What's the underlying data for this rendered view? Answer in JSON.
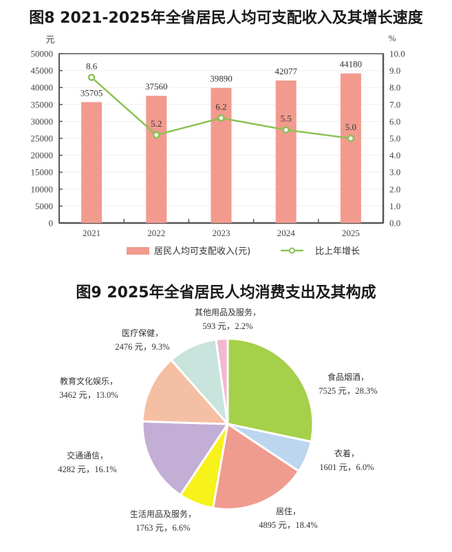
{
  "figure8": {
    "title": "图8 2021-2025年全省居民人均可支配收入及其增长速度",
    "left_unit": "元",
    "right_unit": "%",
    "legend_bar": "居民人均可支配收入(元)",
    "legend_line": "比上年增长"
  },
  "figure9": {
    "title": "图9 2025年全省居民人均消费支出及其构成"
  },
  "colors": {
    "bar": "#f29a8e",
    "line": "#8cc152",
    "axis": "#555555"
  },
  "chart_data": [
    {
      "type": "bar",
      "title": "图8 2021-2025年全省居民人均可支配收入及其增长速度",
      "categories": [
        "2021",
        "2022",
        "2023",
        "2024",
        "2025"
      ],
      "series": [
        {
          "name": "居民人均可支配收入(元)",
          "type": "bar",
          "axis": "left",
          "values": [
            35705,
            37560,
            39890,
            42077,
            44180
          ]
        },
        {
          "name": "比上年增长",
          "type": "line",
          "axis": "right",
          "values": [
            8.6,
            5.2,
            6.2,
            5.5,
            5.0
          ]
        }
      ],
      "xlabel": "",
      "ylabel": "元",
      "y2label": "%",
      "ylim": [
        0,
        50000
      ],
      "y2lim": [
        0,
        10.0
      ],
      "yticks": [
        0,
        5000,
        10000,
        15000,
        20000,
        25000,
        30000,
        35000,
        40000,
        45000,
        50000
      ],
      "y2ticks": [
        "0.0",
        "1.0",
        "2.0",
        "3.0",
        "4.0",
        "5.0",
        "6.0",
        "7.0",
        "8.0",
        "9.0",
        "10.0"
      ],
      "legend": [
        "居民人均可支配收入(元)",
        "比上年增长"
      ],
      "legend_position": "bottom",
      "grid": true
    },
    {
      "type": "pie",
      "title": "图9 2025年全省居民人均消费支出及其构成",
      "slices": [
        {
          "label": "食品烟酒",
          "value": 7525,
          "unit": "元",
          "percent": 28.3,
          "color": "#a5d04a",
          "text": "7525 元，28.3%"
        },
        {
          "label": "衣着",
          "value": 1601,
          "unit": "元",
          "percent": 6.0,
          "color": "#bcd6ef",
          "text": "1601 元，6.0%"
        },
        {
          "label": "居住",
          "value": 4895,
          "unit": "元",
          "percent": 18.4,
          "color": "#f09b8f",
          "text": "4895 元，18.4%"
        },
        {
          "label": "生活用品及服务",
          "value": 1763,
          "unit": "元",
          "percent": 6.6,
          "color": "#f7f21a",
          "text": "1763 元，6.6%"
        },
        {
          "label": "交通通信",
          "value": 4282,
          "unit": "元",
          "percent": 16.1,
          "color": "#c3aed6",
          "text": "4282 元，16.1%"
        },
        {
          "label": "教育文化娱乐",
          "value": 3462,
          "unit": "元",
          "percent": 13.0,
          "color": "#f5bfa3",
          "text": "3462 元，13.0%"
        },
        {
          "label": "医疗保健",
          "value": 2476,
          "unit": "元",
          "percent": 9.3,
          "color": "#c8e4dc",
          "text": "2476 元，9.3%"
        },
        {
          "label": "其他用品及服务",
          "value": 593,
          "unit": "元",
          "percent": 2.2,
          "color": "#f2b8cf",
          "text": "593 元，2.2%"
        }
      ]
    }
  ]
}
